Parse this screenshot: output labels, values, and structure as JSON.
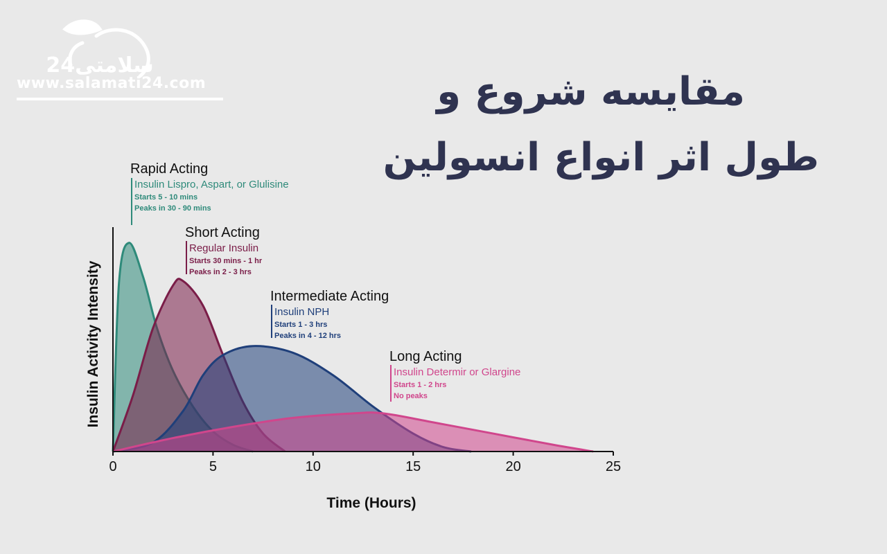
{
  "brand": {
    "logo_text": "سلامتی24",
    "url": "www.salamati24.com"
  },
  "title": {
    "line1": "مقایسه شروع و",
    "line2": "طول اثر انواع انسولین"
  },
  "colors": {
    "background": "#e9e9e9",
    "title": "#2f3350",
    "rapid": "#2e8a7a",
    "short": "#7a1d48",
    "intermediate": "#1f3f7a",
    "long": "#d0468c"
  },
  "chart_data": {
    "type": "area",
    "xlabel": "Time (Hours)",
    "ylabel": "Insulin Activity Intensity",
    "xlim": [
      0,
      25
    ],
    "ylim": [
      0,
      1
    ],
    "xticks": [
      "0",
      "5",
      "10",
      "15",
      "20",
      "25"
    ],
    "grid": false,
    "series": [
      {
        "key": "rapid",
        "name": "Rapid Acting",
        "drug": "Insulin Lispro, Aspart, or Glulisine",
        "starts": "Starts 5 - 10 mins",
        "peaks": "Peaks in  30 - 90 mins",
        "x": [
          0,
          0.3,
          0.8,
          1.5,
          2.2,
          3,
          4,
          5,
          6,
          7
        ],
        "y": [
          0,
          0.75,
          0.93,
          0.78,
          0.55,
          0.36,
          0.2,
          0.09,
          0.03,
          0
        ]
      },
      {
        "key": "short",
        "name": "Short Acting",
        "drug": "Regular Insulin",
        "starts": "Starts 30 mins - 1 hr",
        "peaks": "Peaks in  2 - 3 hrs",
        "x": [
          0,
          1,
          2,
          3,
          3.5,
          4.5,
          5.5,
          6.5,
          7.5,
          8.6
        ],
        "y": [
          0,
          0.25,
          0.55,
          0.74,
          0.76,
          0.65,
          0.43,
          0.22,
          0.08,
          0
        ]
      },
      {
        "key": "intermediate",
        "name": "Intermediate Acting",
        "drug": "Insulin NPH",
        "starts": "Starts 1 - 3 hrs",
        "peaks": "Peaks in 4 - 12 hrs",
        "x": [
          0,
          2,
          3.5,
          4.5,
          5.5,
          7,
          9,
          11,
          13,
          15,
          16.5,
          17.9
        ],
        "y": [
          0,
          0.04,
          0.18,
          0.34,
          0.43,
          0.47,
          0.44,
          0.34,
          0.2,
          0.08,
          0.02,
          0
        ]
      },
      {
        "key": "long",
        "name": "Long Acting",
        "drug": "Insulin Determir or Glargine",
        "starts": "Starts 1 - 2 hrs",
        "peaks": "No peaks",
        "x": [
          0,
          3,
          6,
          9,
          12,
          13.5,
          16,
          19,
          22,
          24
        ],
        "y": [
          0,
          0.06,
          0.11,
          0.15,
          0.17,
          0.17,
          0.13,
          0.08,
          0.03,
          0
        ]
      }
    ]
  }
}
